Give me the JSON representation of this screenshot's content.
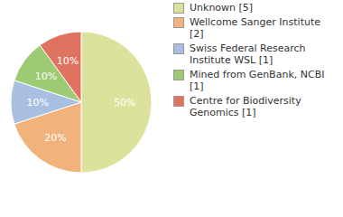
{
  "chart_data": {
    "type": "pie",
    "categories": [
      "Unknown [5]",
      "Wellcome Sanger Institute [2]",
      "Swiss Federal Research Institute WSL [1]",
      "Mined from GenBank, NCBI [1]",
      "Centre for Biodiversity Genomics [1]"
    ],
    "values": [
      50,
      20,
      10,
      10,
      10
    ],
    "value_labels": [
      "50%",
      "20%",
      "10%",
      "10%",
      "10%"
    ],
    "colors": [
      "#dce29c",
      "#f1b27c",
      "#a9bfe2",
      "#9dcb74",
      "#e0735f"
    ],
    "data_labels": true,
    "legend": "right"
  }
}
